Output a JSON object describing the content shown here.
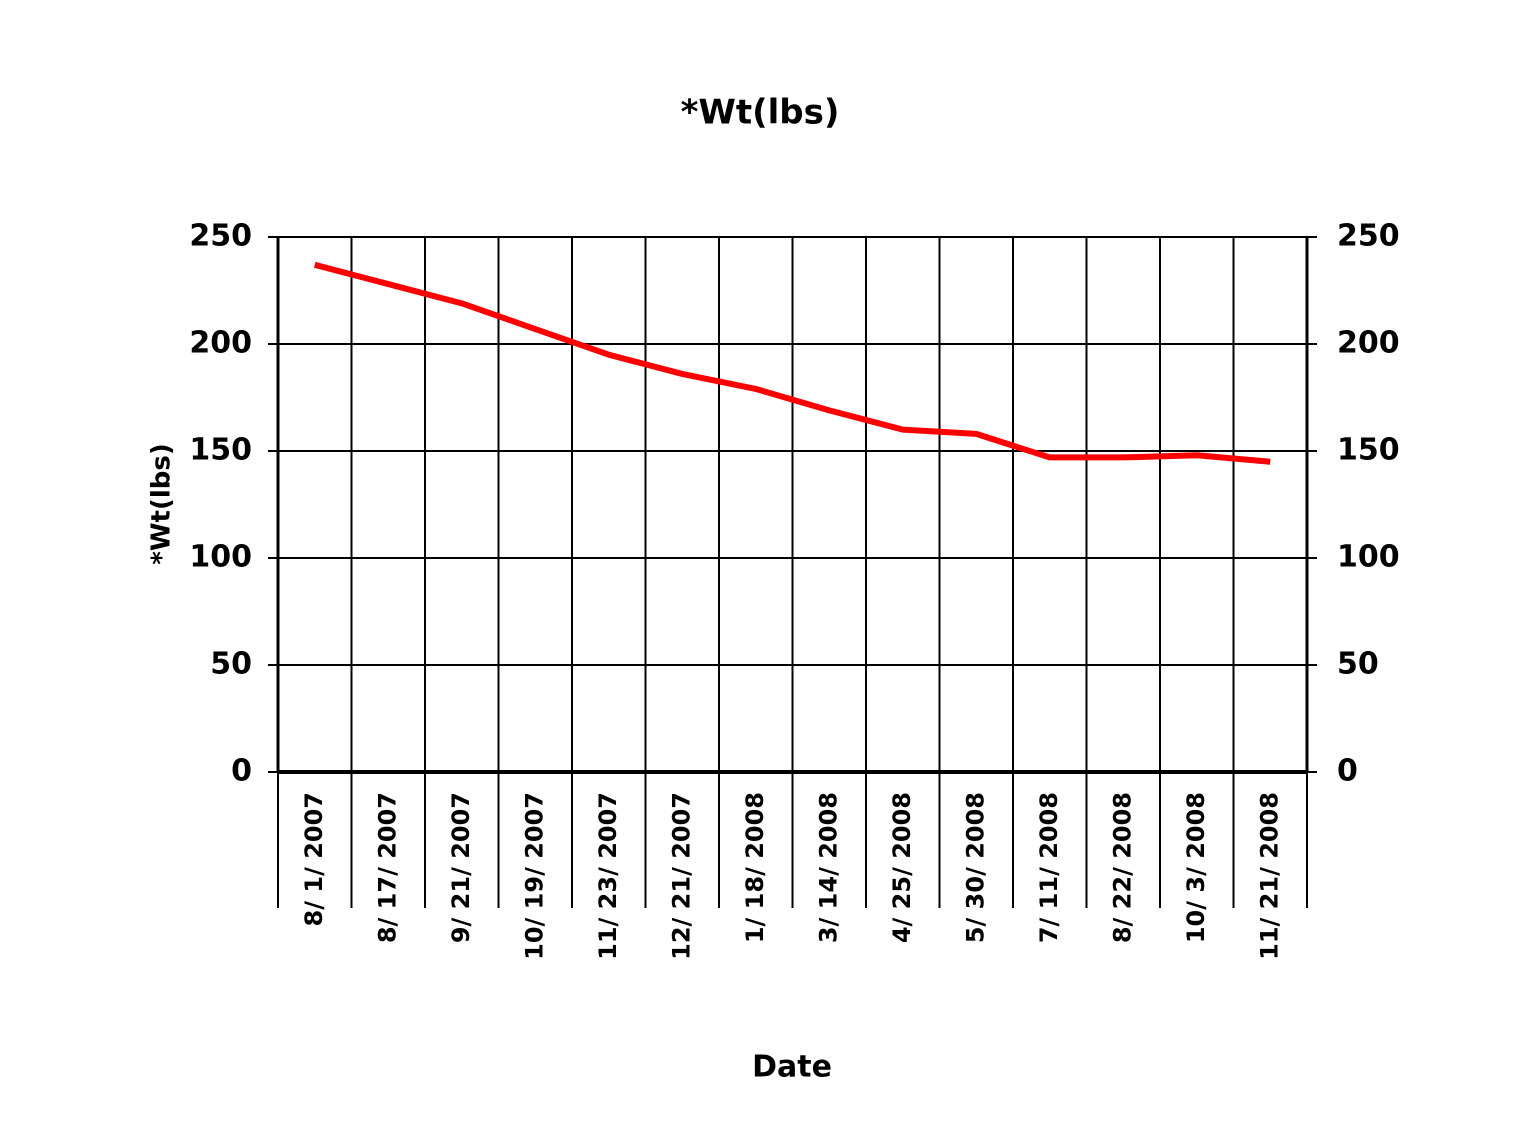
{
  "chart_data": {
    "type": "line",
    "title": "*Wt(lbs)",
    "x_label": "Date",
    "y_label": "*Wt(lbs)",
    "categories": [
      "8/ 1/ 2007",
      "8/ 17/ 2007",
      "9/ 21/ 2007",
      "10/ 19/ 2007",
      "11/ 23/ 2007",
      "12/ 21/ 2007",
      "1/ 18/ 2008",
      "3/ 14/ 2008",
      "4/ 25/ 2008",
      "5/ 30/ 2008",
      "7/ 11/ 2008",
      "8/ 22/ 2008",
      "10/ 3/ 2008",
      "11/ 21/ 2008"
    ],
    "series": [
      {
        "name": "*Wt(lbs)",
        "color": "#ff0000",
        "values": [
          237,
          228,
          219,
          207,
          195,
          186,
          179,
          169,
          160,
          158,
          147,
          147,
          148,
          145
        ]
      }
    ],
    "ylim": [
      0,
      250
    ],
    "yticks": [
      0,
      50,
      100,
      150,
      200,
      250
    ],
    "y2lim": [
      0,
      250
    ],
    "y2ticks": [
      0,
      50,
      100,
      150,
      200,
      250
    ],
    "grid": true,
    "legend": false
  }
}
